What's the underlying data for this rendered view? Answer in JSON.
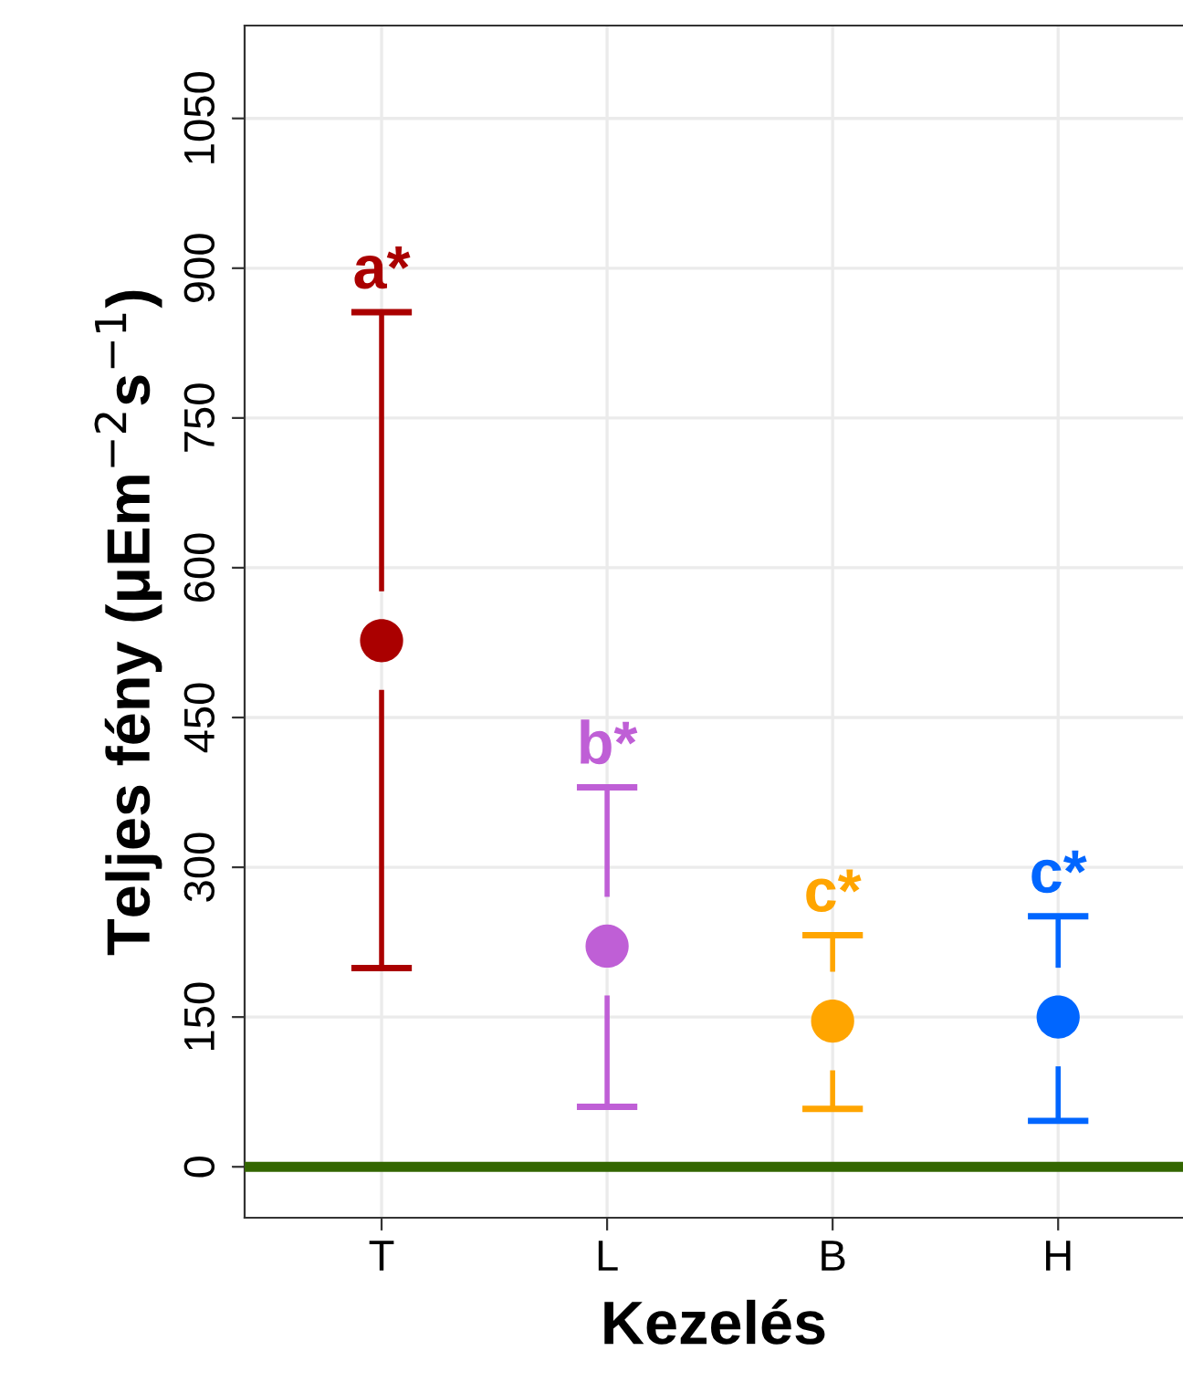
{
  "chart_data": {
    "type": "scatter",
    "xlabel": "Kezelés",
    "ylabel": "Teljes fény (μEm$^{−2}$s$^{−1}$)",
    "categories": [
      "T",
      "L",
      "B",
      "H"
    ],
    "values": [
      527,
      221,
      146,
      150
    ],
    "colors": [
      "#aa0000",
      "#bf5fd6",
      "#ffa500",
      "#0066ff"
    ],
    "errors": [
      [
        199,
        856
      ],
      [
        60,
        380
      ],
      [
        58,
        232
      ],
      [
        46,
        251
      ]
    ],
    "ylim": [
      -51,
      1143
    ],
    "yticks": [
      0,
      150,
      300,
      450,
      600,
      750,
      900,
      1050
    ],
    "grid": true,
    "marker": "circle",
    "ref_lines": [
      {
        "axis": "y",
        "value": 0,
        "color": "#336600"
      }
    ],
    "annotations": [
      "a*",
      "b*",
      "c*",
      "c*"
    ]
  }
}
